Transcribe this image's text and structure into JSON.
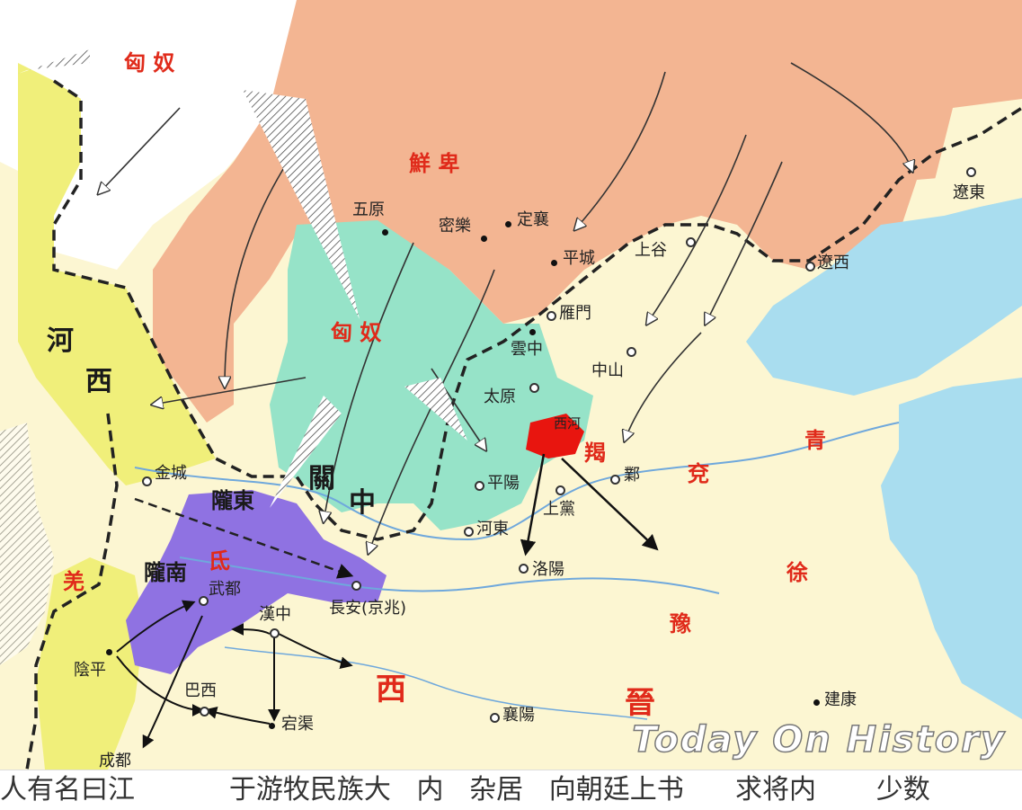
{
  "regions": {
    "xiongnu_nw": "匈  奴",
    "xianbei": "鮮        卑",
    "xiongnu_c": "匈  奴",
    "hexi_1": "河",
    "hexi_2": "西",
    "guanzhong_1": "關",
    "guanzhong_2": "中",
    "jie": "羯",
    "qing": "青",
    "yan": "兗",
    "xu": "徐",
    "yu": "豫",
    "qiang": "羌",
    "di": "氐",
    "xi": "西",
    "jin": "晉",
    "longdong": "隴東",
    "longnan": "隴南"
  },
  "cities": {
    "wuyuan": "五原",
    "mile": "密樂",
    "dingxiang": "定襄",
    "pingcheng": "平城",
    "shanggu": "上谷",
    "liaodong": "遼東",
    "liaoxi": "遼西",
    "yanmen": "雁門",
    "yunzhong": "雲中",
    "zhongshan": "中山",
    "taiyuan": "太原",
    "xiguo": "西河",
    "ye": "鄴",
    "pingyang": "平陽",
    "shangdang": "上黨",
    "hedong": "河東",
    "luoyang": "洛陽",
    "jincheng": "金城",
    "changan": "長安(京兆)",
    "wudu": "武都",
    "hanzhong": "漢中",
    "yinping": "陰平",
    "baxi": "巴西",
    "dangqu": "宕渠",
    "chengdu": "成都",
    "xiangyang": "襄陽",
    "jiankang": "建康"
  },
  "watermark": "Today On History",
  "caption": "人有名曰江           于游牧民族大   内   杂居   向朝廷上书      求将内       少数",
  "colors": {
    "sea": "#a9ddef",
    "xianbei_area": "#f3b592",
    "hexi_area": "#f0ef7a",
    "jin_land": "#fcf6d2",
    "xiongnu_area": "#96e3c8",
    "di_area": "#8f72e2",
    "jie_area": "#e8150f",
    "border": "#222222",
    "region_label": "#e02a1a"
  }
}
